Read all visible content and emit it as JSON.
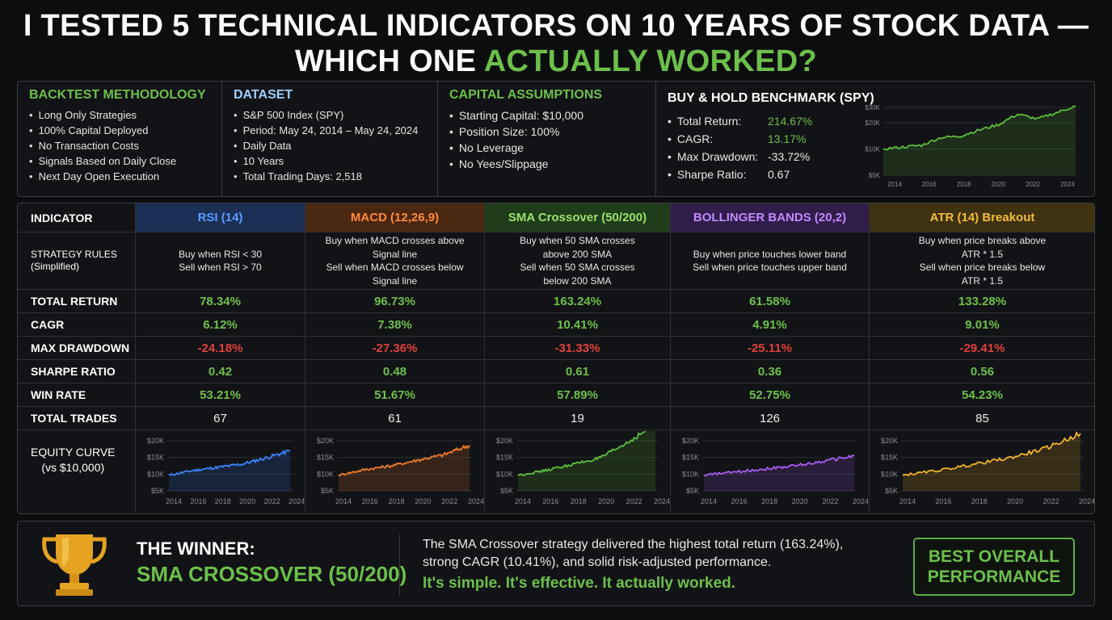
{
  "title": {
    "line1": "I TESTED 5 TECHNICAL INDICATORS ON 10 YEARS OF STOCK DATA —",
    "line2_prefix": "WHICH ONE ",
    "line2_highlight": "ACTUALLY WORKED?"
  },
  "methodology": {
    "heading": "BACKTEST METHODOLOGY",
    "items": [
      "Long Only Strategies",
      "100% Capital Deployed",
      "No Transaction Costs",
      "Signals Based on Daily Close",
      "Next Day Open Execution"
    ]
  },
  "dataset": {
    "heading": "DATASET",
    "items": [
      "S&P 500 Index (SPY)",
      "Period: May 24, 2014 – May 24, 2024",
      "Daily Data",
      "10 Years",
      "Total Trading Days: 2,518"
    ]
  },
  "capital": {
    "heading": "CAPITAL ASSUMPTIONS",
    "items": [
      "Starting Capital: $10,000",
      "Position Size: 100%",
      "No Leverage",
      "No Yees/Slippage"
    ]
  },
  "benchmark": {
    "heading": "BUY & HOLD BENCHMARK (SPY)",
    "rows": [
      {
        "label": "Total Return:",
        "value": "214.67%"
      },
      {
        "label": "CAGR:",
        "value": "13.17%"
      },
      {
        "label": "Max Drawdown:",
        "value": "-33.72%"
      },
      {
        "label": "Sharpe Ratio:",
        "value": "0.67"
      }
    ]
  },
  "table": {
    "header_label": "INDICATOR",
    "row_labels": {
      "rules": "STRATEGY RULES\n(Simplified)",
      "total_return": "TOTAL RETURN",
      "cagr": "CAGR",
      "max_drawdown": "MAX DRAWDOWN",
      "sharpe": "SHARPE RATIO",
      "win_rate": "WIN RATE",
      "trades": "TOTAL TRADES",
      "equity": "EQUITY CURVE\n(vs $10,000)"
    },
    "indicators": [
      {
        "name": "RSI (14)",
        "head_bg": "#1b2f55",
        "head_color": "#5a9bff",
        "line": "#3a85ff",
        "rules": [
          "Buy when RSI < 30",
          "Sell when RSI > 70"
        ],
        "total_return": "78.34%",
        "cagr": "6.12%",
        "max_drawdown": "-24.18%",
        "sharpe": "0.42",
        "win_rate": "53.21%",
        "trades": "67"
      },
      {
        "name": "MACD (12,26,9)",
        "head_bg": "#4a2710",
        "head_color": "#ff8a3a",
        "line": "#f07a2a",
        "rules": [
          "Buy when MACD crosses above",
          "Signal line",
          "Sell when MACD crosses below",
          "Signal line"
        ],
        "total_return": "96.73%",
        "cagr": "7.38%",
        "max_drawdown": "-27.36%",
        "sharpe": "0.48",
        "win_rate": "51.67%",
        "trades": "61"
      },
      {
        "name": "SMA Crossover (50/200)",
        "head_bg": "#1f3d1a",
        "head_color": "#9ae06d",
        "line": "#5cc03a",
        "rules": [
          "Buy when 50 SMA crosses",
          "above 200 SMA",
          "Sell when 50 SMA crosses",
          "below 200 SMA"
        ],
        "total_return": "163.24%",
        "cagr": "10.41%",
        "max_drawdown": "-31.33%",
        "sharpe": "0.61",
        "win_rate": "57.89%",
        "trades": "19"
      },
      {
        "name": "BOLLINGER BANDS (20,2)",
        "head_bg": "#301d4a",
        "head_color": "#c08aff",
        "line": "#a45cf0",
        "rules": [
          "Buy when price touches lower band",
          "Sell when price touches upper band"
        ],
        "total_return": "61.58%",
        "cagr": "4.91%",
        "max_drawdown": "-25.11%",
        "sharpe": "0.36",
        "win_rate": "52.75%",
        "trades": "126"
      },
      {
        "name": "ATR (14) Breakout",
        "head_bg": "#3e3210",
        "head_color": "#f2bc3a",
        "line": "#f0b228",
        "rules": [
          "Buy when price breaks above",
          "ATR * 1.5",
          "Sell when price breaks below",
          "ATR * 1.5"
        ],
        "total_return": "133.28%",
        "cagr": "9.01%",
        "max_drawdown": "-29.41%",
        "sharpe": "0.56",
        "win_rate": "54.23%",
        "trades": "85"
      }
    ]
  },
  "chart_data": [
    {
      "type": "line",
      "title": "",
      "series_name": "SPY Buy & Hold",
      "x": [
        2014,
        2015,
        2016,
        2017,
        2018,
        2019,
        2020,
        2021,
        2022,
        2023,
        2024
      ],
      "y": [
        10000,
        10500,
        11000,
        13500,
        14000,
        16500,
        19000,
        25000,
        22000,
        26000,
        31000
      ],
      "yticks": [
        "$5K",
        "$10K",
        "$20K",
        "$30K"
      ],
      "xticks": [
        "2014",
        "2016",
        "2018",
        "2020",
        "2022",
        "2024"
      ]
    },
    {
      "type": "line",
      "series_name": "RSI (14)",
      "x": [
        2014,
        2016,
        2018,
        2020,
        2022,
        2024
      ],
      "y": [
        10000,
        11500,
        12500,
        13500,
        15500,
        17800
      ],
      "yticks": [
        "$20K",
        "$15K",
        "$10K",
        "$5K"
      ],
      "xticks": [
        "2014",
        "2016",
        "2018",
        "2020",
        "2022",
        "2024"
      ]
    },
    {
      "type": "line",
      "series_name": "MACD (12,26,9)",
      "x": [
        2014,
        2016,
        2018,
        2020,
        2022,
        2024
      ],
      "y": [
        10000,
        11800,
        13000,
        14800,
        16500,
        19600
      ],
      "yticks": [
        "$20K",
        "$15K",
        "$10K",
        "$5K"
      ],
      "xticks": [
        "2014",
        "2016",
        "2018",
        "2020",
        "2022",
        "2024"
      ]
    },
    {
      "type": "line",
      "series_name": "SMA Crossover (50/200)",
      "x": [
        2014,
        2016,
        2018,
        2020,
        2022,
        2024
      ],
      "y": [
        10000,
        11500,
        13500,
        15500,
        20500,
        26300
      ],
      "yticks": [
        "$20K",
        "$15K",
        "$10K",
        "$5K"
      ],
      "xticks": [
        "2014",
        "2016",
        "2018",
        "2020",
        "2022",
        "2024"
      ]
    },
    {
      "type": "line",
      "series_name": "BOLLINGER BANDS (20,2)",
      "x": [
        2014,
        2016,
        2018,
        2020,
        2022,
        2024
      ],
      "y": [
        10000,
        11000,
        12000,
        13000,
        14500,
        16200
      ],
      "yticks": [
        "$20K",
        "$15K",
        "$10K",
        "$5K"
      ],
      "xticks": [
        "2014",
        "2016",
        "2018",
        "2020",
        "2022",
        "2024"
      ]
    },
    {
      "type": "line",
      "series_name": "ATR (14) Breakout",
      "x": [
        2014,
        2016,
        2018,
        2020,
        2022,
        2024
      ],
      "y": [
        10000,
        11500,
        13500,
        15500,
        18500,
        23300
      ],
      "yticks": [
        "$20K",
        "$15K",
        "$10K",
        "$5K"
      ],
      "xticks": [
        "2014",
        "2016",
        "2018",
        "2020",
        "2022",
        "2024"
      ]
    }
  ],
  "winner": {
    "label": "THE WINNER:",
    "name": "SMA CROSSOVER (50/200)",
    "text_line1": "The SMA Crossover strategy delivered the highest total return (163.24%),",
    "text_line2": "strong CAGR (10.41%), and solid risk-adjusted performance.",
    "slogan": "It's simple. It's effective. It actually worked.",
    "badge_line1": "BEST OVERALL",
    "badge_line2": "PERFORMANCE"
  }
}
